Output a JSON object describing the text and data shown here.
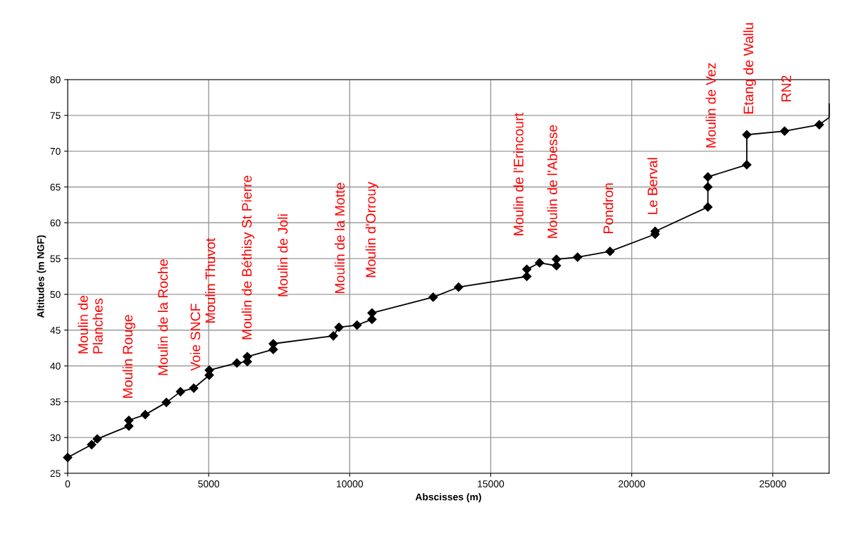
{
  "chart_data": {
    "type": "line",
    "xlabel": "Abscisses (m)",
    "ylabel": "Altitudes (m NGF)",
    "xlim": [
      0,
      27000
    ],
    "xticks": [
      0,
      5000,
      10000,
      15000,
      20000,
      25000
    ],
    "ylim": [
      25,
      80
    ],
    "yticks": [
      25,
      30,
      35,
      40,
      45,
      50,
      55,
      60,
      65,
      70,
      75,
      80
    ],
    "grid": true,
    "line_style": "solid",
    "series": [
      {
        "color": "#000000",
        "marker": "diamond",
        "x": [
          0,
          850,
          1050,
          2170,
          2170,
          2750,
          3500,
          4000,
          4470,
          5020,
          5020,
          6000,
          6370,
          6370,
          7290,
          7290,
          9420,
          9620,
          10260,
          10790,
          10790,
          12960,
          13860,
          16280,
          16280,
          16730,
          17330,
          17330,
          18080,
          19230,
          20830,
          20830,
          22700,
          22700,
          22700,
          24080,
          24080,
          25420,
          26650
        ],
        "values": [
          27.2,
          29.0,
          29.8,
          31.6,
          32.4,
          33.2,
          34.9,
          36.4,
          36.9,
          38.7,
          39.4,
          40.4,
          40.6,
          41.3,
          42.3,
          43.1,
          44.2,
          45.4,
          45.7,
          46.5,
          47.4,
          49.6,
          51.0,
          52.5,
          53.5,
          54.4,
          54.0,
          54.9,
          55.2,
          56.0,
          58.4,
          58.8,
          62.2,
          65.0,
          66.4,
          68.1,
          72.3,
          72.8,
          73.7
        ]
      },
      {
        "color": "#000000",
        "marker": "none",
        "x": [
          26650,
          27000,
          27000
        ],
        "values": [
          73.7,
          74.7,
          76.6
        ]
      }
    ],
    "annotations": [
      "Moulin de\nPlanches",
      "Moulin Rouge",
      "Moulin de la Roche",
      "Voie SNCF",
      "Moulin Thuvot",
      "Moulin de Béthisy St Pierre",
      "Moulin de Joli",
      "Moulin de la Motte",
      "Moulin d'Orrouy",
      "Moulin de l'Erincourt",
      "Moulin de l'Abesse",
      "Pondron",
      "Le Berval",
      "Moulin de Vez",
      "Etang de Wallu",
      "RN2"
    ]
  }
}
